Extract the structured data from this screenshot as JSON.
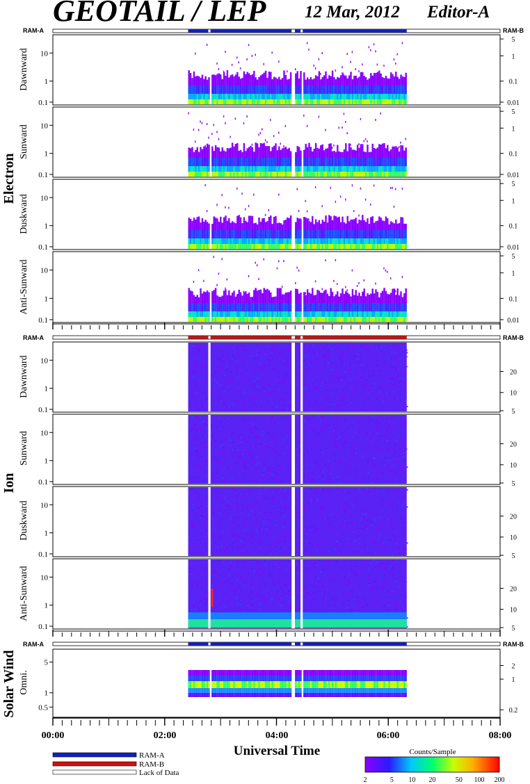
{
  "header": {
    "title": "GEOTAIL / LEP",
    "date": "12 Mar, 2012",
    "editor": "Editor-A"
  },
  "groups": [
    {
      "key": "electron",
      "label": "Electron",
      "ram_left": "RAM-A",
      "ram_right": "RAM-B",
      "ram_color": "#1020c8"
    },
    {
      "key": "ion",
      "label": "Ion",
      "ram_left": "RAM-A",
      "ram_right": "RAM-B",
      "ram_color": "#d01010"
    },
    {
      "key": "solar",
      "label": "Solar Wind",
      "ram_left": "RAM-A",
      "ram_right": "RAM-B",
      "ram_color": "#1020c8"
    }
  ],
  "panels": [
    {
      "group": "electron",
      "label": "Dawnward",
      "left_ticks": [
        "10",
        "1",
        "0.1"
      ],
      "right_ticks": [
        "5",
        "1",
        "0.1",
        "0.01"
      ]
    },
    {
      "group": "electron",
      "label": "Sunward",
      "left_ticks": [
        "10",
        "1",
        "0.1"
      ],
      "right_ticks": [
        "5",
        "1",
        "0.1",
        "0.01"
      ]
    },
    {
      "group": "electron",
      "label": "Duskward",
      "left_ticks": [
        "10",
        "1",
        "0.1"
      ],
      "right_ticks": [
        "5",
        "1",
        "0.1",
        "0.01"
      ]
    },
    {
      "group": "electron",
      "label": "Anti-Sunward",
      "left_ticks": [
        "10",
        "1",
        "0.1"
      ],
      "right_ticks": [
        "5",
        "1",
        "0.1",
        "0.01"
      ]
    },
    {
      "group": "ion",
      "label": "Dawnward",
      "left_ticks": [
        "10",
        "1",
        "0.1"
      ],
      "right_ticks": [
        "20",
        "10",
        "5"
      ]
    },
    {
      "group": "ion",
      "label": "Sunward",
      "left_ticks": [
        "10",
        "1",
        "0.1"
      ],
      "right_ticks": [
        "20",
        "10",
        "5"
      ]
    },
    {
      "group": "ion",
      "label": "Duskward",
      "left_ticks": [
        "10",
        "1",
        "0.1"
      ],
      "right_ticks": [
        "20",
        "10",
        "5"
      ]
    },
    {
      "group": "ion",
      "label": "Anti-Sunward",
      "left_ticks": [
        "10",
        "1",
        "0.1"
      ],
      "right_ticks": [
        "20",
        "10",
        "5"
      ]
    },
    {
      "group": "solar",
      "label": "Omni.",
      "left_ticks": [
        "5",
        "1",
        "0.5"
      ],
      "right_ticks": [
        "2",
        "1",
        "0.2"
      ]
    }
  ],
  "chart_data": {
    "type": "heatmap",
    "xlabel": "Universal Time",
    "x_ticks": [
      "00:00",
      "02:00",
      "04:00",
      "06:00",
      "08:00"
    ],
    "x_range_hours": [
      0,
      8
    ],
    "data_coverage_hours": [
      2.42,
      6.33
    ],
    "data_gaps_hours": [
      [
        2.78,
        2.82
      ],
      [
        4.27,
        4.33
      ],
      [
        4.43,
        4.47
      ]
    ],
    "colorbar": {
      "label": "Counts/Sample",
      "ticks": [
        "2",
        "5",
        "10",
        "20",
        "50",
        "100",
        "200"
      ],
      "range": [
        2,
        200
      ],
      "scale": "log"
    }
  },
  "legend": [
    {
      "label": "RAM-A",
      "color": "#1020c8"
    },
    {
      "label": "RAM-B",
      "color": "#d01010"
    },
    {
      "label": "Lack of Data",
      "color": "#ffffff"
    }
  ]
}
